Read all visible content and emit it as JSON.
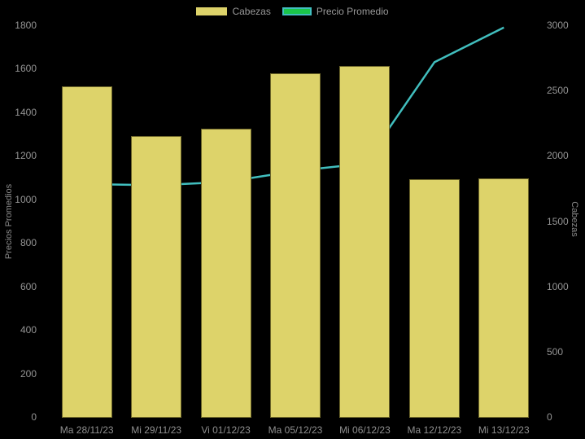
{
  "chart_data": {
    "type": "bar",
    "categories": [
      "Ma 28/11/23",
      "Mi 29/11/23",
      "Vi 01/12/23",
      "Ma 05/12/23",
      "Mi 06/12/23",
      "Ma 12/12/23",
      "Mi 13/12/23"
    ],
    "series": [
      {
        "name": "Cabezas",
        "type": "bar",
        "y_axis": "right",
        "color": "#ddd36a",
        "values": [
          2530,
          2150,
          2210,
          2630,
          2690,
          1820,
          1830
        ]
      },
      {
        "name": "Precio Promedio",
        "type": "line",
        "y_axis": "left",
        "color": "#41bebe",
        "values": [
          1070,
          1065,
          1080,
          1130,
          1165,
          1630,
          1790
        ]
      }
    ],
    "title": "",
    "xlabel": "",
    "ylabel_left": "Precios Promedios",
    "ylabel_right": "Cabezas",
    "left_ylim": [
      0,
      1800
    ],
    "right_ylim": [
      0,
      3000
    ],
    "grid": false,
    "legend_position": "top",
    "background": "#000000"
  },
  "legend": {
    "bar": {
      "label": "Cabezas",
      "swatch_color": "#ddd36a"
    },
    "line": {
      "label": "Precio Promedio",
      "swatch_color": "#1ac54a",
      "swatch_border": "#41bebe"
    }
  },
  "left_axis": {
    "title": "Precios Promedios",
    "ticks": [
      "0",
      "200",
      "400",
      "600",
      "800",
      "1000",
      "1200",
      "1400",
      "1600",
      "1800"
    ]
  },
  "right_axis": {
    "title": "Cabezas",
    "ticks": [
      "0",
      "500",
      "1000",
      "1500",
      "2000",
      "2500",
      "3000"
    ]
  },
  "colors": {
    "background": "#000000",
    "bar_fill": "#ddd36a",
    "bar_border": "#6b6429",
    "line": "#41bebe",
    "text": "#999999"
  }
}
